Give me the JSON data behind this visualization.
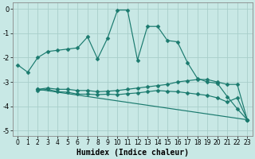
{
  "xlabel": "Humidex (Indice chaleur)",
  "background_color": "#c8e8e5",
  "grid_color": "#a8ceca",
  "line_color": "#1a7a6e",
  "xlim": [
    -0.5,
    23.5
  ],
  "ylim": [
    -5.2,
    0.25
  ],
  "yticks": [
    0,
    -1,
    -2,
    -3,
    -4,
    -5
  ],
  "xticks": [
    0,
    1,
    2,
    3,
    4,
    5,
    6,
    7,
    8,
    9,
    10,
    11,
    12,
    13,
    14,
    15,
    16,
    17,
    18,
    19,
    20,
    21,
    22,
    23
  ],
  "series": [
    {
      "x": [
        0,
        1,
        2,
        3,
        4,
        5,
        6,
        7,
        8,
        9,
        10,
        11,
        12,
        13,
        14,
        15,
        16,
        17,
        18,
        19,
        20,
        21,
        22,
        23
      ],
      "y": [
        -2.3,
        -2.6,
        -2.0,
        -1.75,
        -1.7,
        -1.65,
        -1.6,
        -1.15,
        -2.05,
        -1.2,
        -0.05,
        -0.05,
        -2.1,
        -0.72,
        -0.72,
        -1.3,
        -1.35,
        -2.2,
        -2.85,
        -3.0,
        -3.05,
        -3.6,
        -4.1,
        -4.55
      ]
    },
    {
      "x": [
        2,
        3,
        4,
        5,
        6,
        7,
        8,
        9,
        10,
        11,
        12,
        13,
        14,
        15,
        16,
        17,
        18,
        19,
        20,
        21,
        22,
        23
      ],
      "y": [
        -3.3,
        -3.25,
        -3.3,
        -3.3,
        -3.35,
        -3.35,
        -3.4,
        -3.38,
        -3.35,
        -3.3,
        -3.25,
        -3.2,
        -3.15,
        -3.1,
        -3.0,
        -2.95,
        -2.9,
        -2.9,
        -3.0,
        -3.1,
        -3.1,
        -4.55
      ]
    },
    {
      "x": [
        2,
        3,
        4,
        5,
        6,
        7,
        8,
        9,
        10,
        11,
        12,
        13,
        14,
        15,
        16,
        17,
        18,
        19,
        20,
        21,
        22,
        23
      ],
      "y": [
        -3.35,
        -3.3,
        -3.4,
        -3.42,
        -3.5,
        -3.5,
        -3.52,
        -3.5,
        -3.52,
        -3.48,
        -3.45,
        -3.4,
        -3.35,
        -3.38,
        -3.4,
        -3.45,
        -3.5,
        -3.55,
        -3.65,
        -3.82,
        -3.65,
        -4.55
      ]
    },
    {
      "x": [
        2,
        23
      ],
      "y": [
        -3.3,
        -4.55
      ]
    }
  ]
}
